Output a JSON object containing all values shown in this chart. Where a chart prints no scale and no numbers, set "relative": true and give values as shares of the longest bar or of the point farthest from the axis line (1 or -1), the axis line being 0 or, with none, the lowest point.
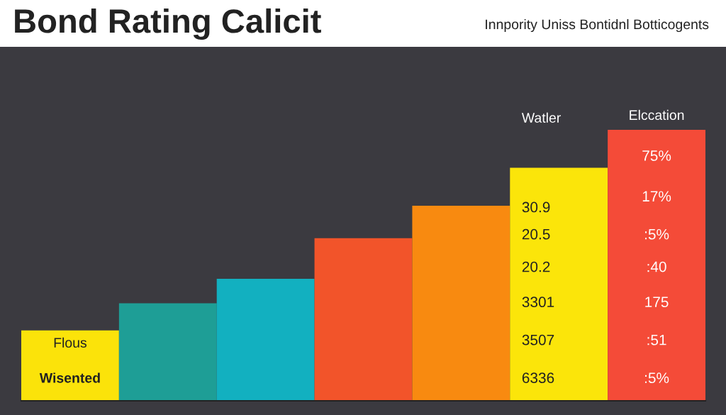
{
  "chart_data": {
    "type": "bar",
    "title": "Bond Rating Calicit",
    "subtitle": "Innpority Uniss Bontidnl Botticogents",
    "categories": [
      null,
      null,
      null,
      null,
      null,
      null,
      null
    ],
    "values": [
      0.26,
      0.36,
      0.45,
      0.6,
      0.72,
      0.86,
      1.0
    ],
    "colors": [
      "#fbe30a",
      "#1e9e96",
      "#12b0c0",
      "#f2542a",
      "#f88a10",
      "#fbe50a",
      "#f44b38"
    ],
    "relative": true,
    "annotations": [
      "Flous",
      "Wisented",
      "Watler",
      "30.9",
      "20.5",
      "20.2",
      "3301",
      "3507",
      "6336",
      "Elccation",
      "75%",
      "17%",
      ":5%",
      ":40",
      "175",
      ":51",
      ":5%"
    ]
  }
}
